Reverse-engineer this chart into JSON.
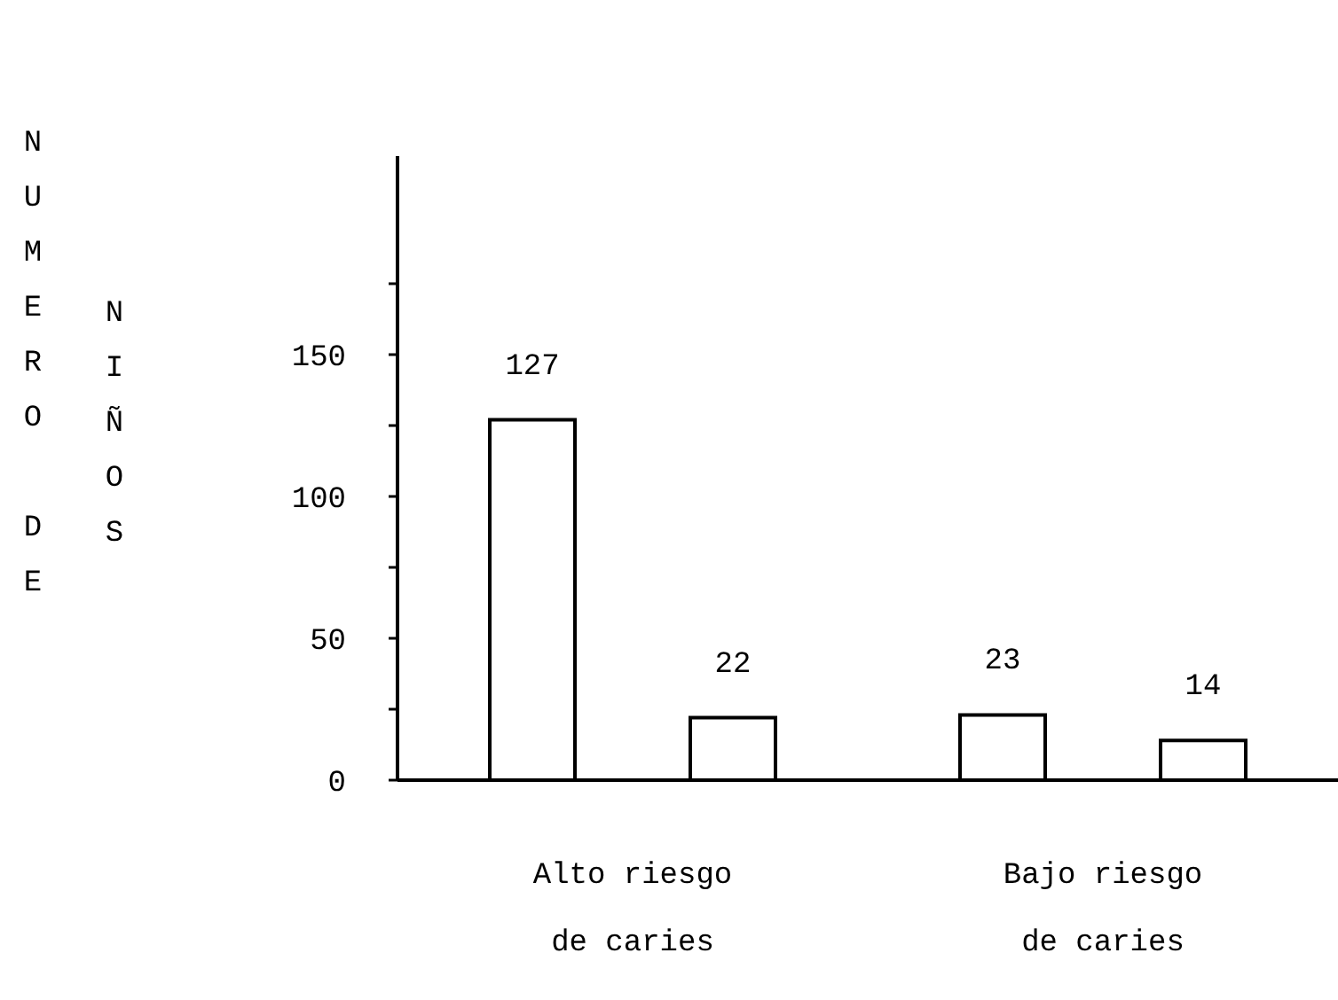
{
  "chart_data": {
    "type": "bar",
    "ylabel": "NUMERO DE NIÑOS",
    "categories": [
      "Alto riesgo de caries",
      "Bajo riesgo de caries"
    ],
    "series": [
      {
        "color": "#ffffff",
        "values": [
          127,
          23
        ]
      },
      {
        "color": "#ffffff",
        "values": [
          22,
          14
        ]
      }
    ],
    "ylim": [
      0,
      220
    ],
    "yticks": [
      0,
      {
        "value": 25,
        "label": null
      },
      50,
      {
        "value": 75,
        "label": null
      },
      100,
      {
        "value": 125,
        "label": null
      },
      150,
      {
        "value": 175,
        "label": null
      }
    ],
    "data_labels": true,
    "grid": false,
    "legend": false
  }
}
